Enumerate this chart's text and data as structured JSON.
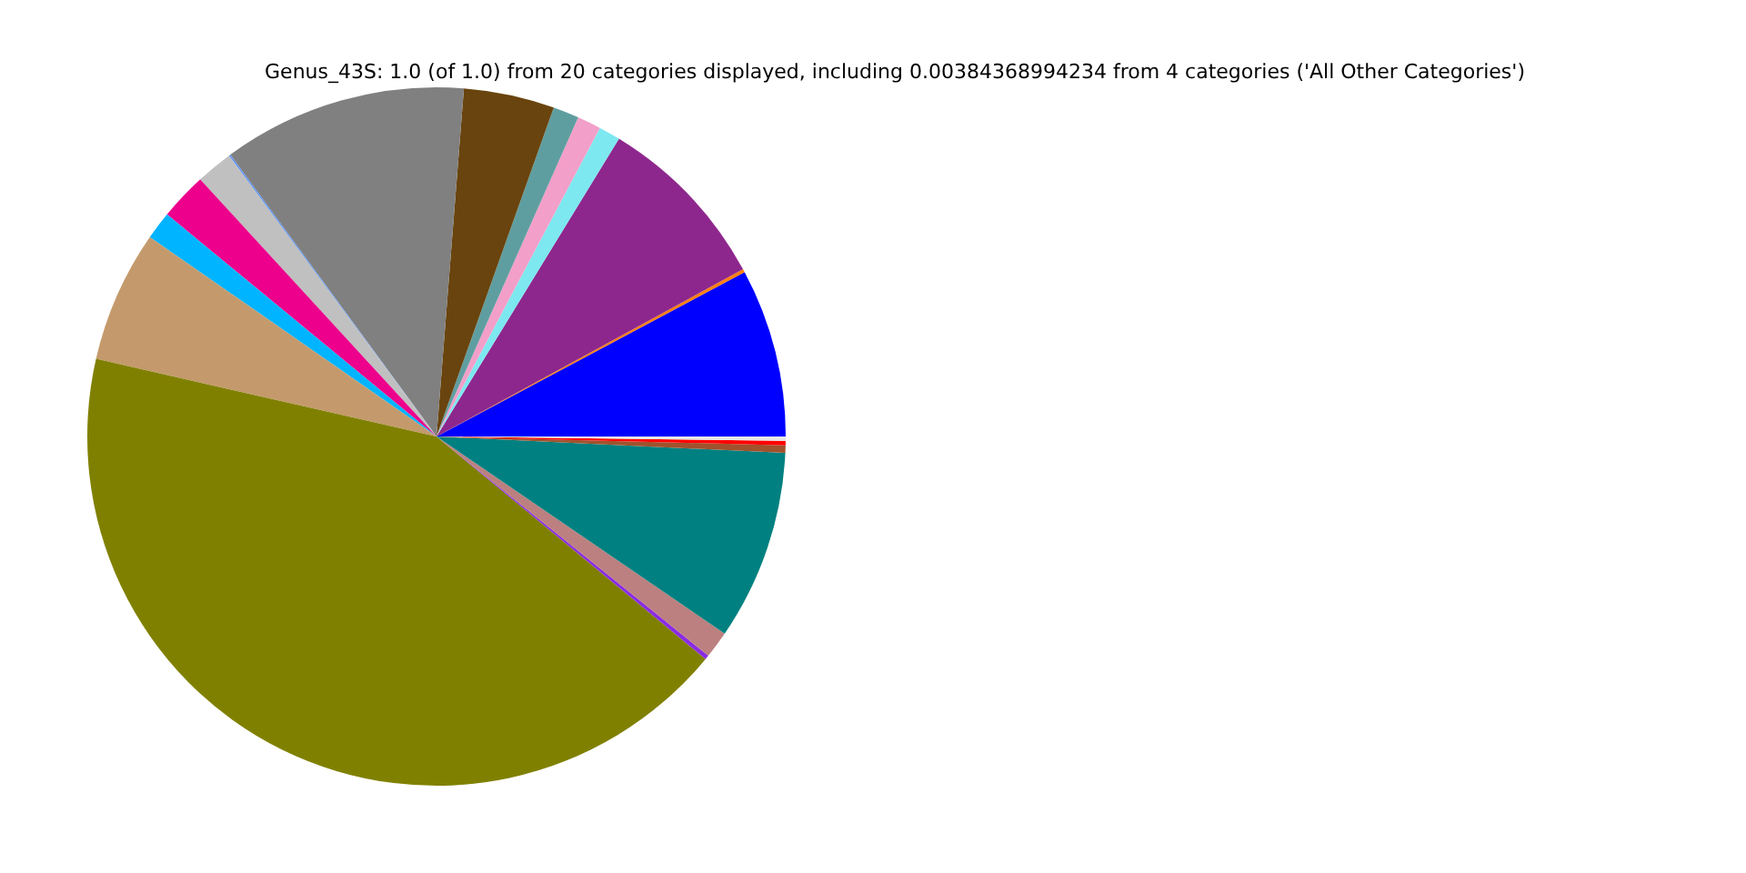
{
  "chart_data": {
    "type": "pie",
    "title": "Genus_43S: 1.0 (of 1.0) from 20 categories displayed, including 0.00384368994234 from 4 categories ('All Other Categories')",
    "categories": [
      null,
      null,
      null,
      null,
      null,
      null,
      null,
      null,
      null,
      null,
      null,
      null,
      null,
      null,
      null,
      null,
      null,
      null,
      null,
      null
    ],
    "values": [
      7.8,
      0.15,
      8.3,
      1.0,
      1.1,
      1.2,
      4.2,
      11.3,
      0.08,
      1.7,
      2.2,
      1.3,
      6.1,
      42.57,
      0.2,
      1.25,
      8.8,
      0.35,
      0.2,
      0.2
    ],
    "colors": [
      "#0000ff",
      "#ff7f0e",
      "#8e278d",
      "#7de8f0",
      "#f29fc9",
      "#5f9ea0",
      "#69440e",
      "#808080",
      "#6495ed",
      "#c0c0c0",
      "#ec008c",
      "#00b4ff",
      "#c49a6c",
      "#808000",
      "#8a2be2",
      "#bc8080",
      "#008080",
      "#a0522d",
      "#ff0000",
      "#e8e8e8"
    ]
  }
}
